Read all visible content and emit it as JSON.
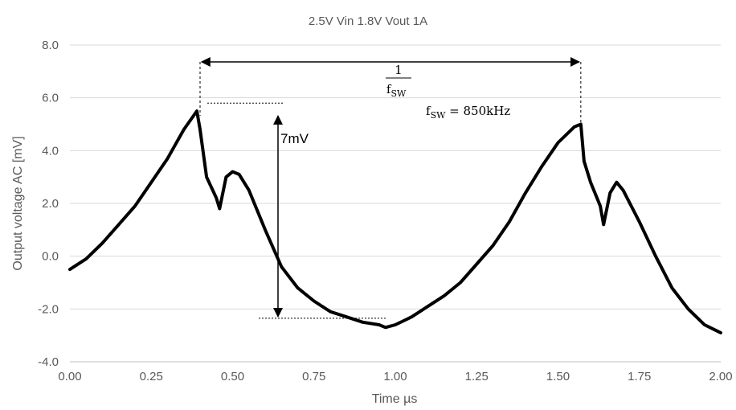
{
  "chart_data": {
    "type": "line",
    "title": "2.5V Vin 1.8V Vout 1A",
    "xlabel": "Time µs",
    "ylabel": "Output voltage AC [mV]",
    "xlim": [
      0,
      2
    ],
    "ylim": [
      -4,
      8
    ],
    "x_ticks": [
      "0.00",
      "0.25",
      "0.50",
      "0.75",
      "1.00",
      "1.25",
      "1.50",
      "1.75",
      "2.00"
    ],
    "y_ticks": [
      "8.0",
      "6.0",
      "4.0",
      "2.0",
      "0.0",
      "-2.0",
      "-4.0"
    ],
    "grid": "horizontal",
    "legend": "none",
    "series": [
      {
        "color": "#000000",
        "x": [
          0.0,
          0.05,
          0.1,
          0.15,
          0.2,
          0.25,
          0.3,
          0.35,
          0.39,
          0.4,
          0.42,
          0.45,
          0.46,
          0.48,
          0.5,
          0.52,
          0.55,
          0.6,
          0.65,
          0.7,
          0.75,
          0.8,
          0.85,
          0.9,
          0.95,
          0.97,
          1.0,
          1.05,
          1.1,
          1.15,
          1.2,
          1.25,
          1.3,
          1.35,
          1.4,
          1.45,
          1.5,
          1.55,
          1.57,
          1.58,
          1.6,
          1.63,
          1.64,
          1.66,
          1.68,
          1.7,
          1.75,
          1.8,
          1.85,
          1.9,
          1.95,
          2.0
        ],
        "y": [
          -0.5,
          -0.1,
          0.5,
          1.2,
          1.9,
          2.8,
          3.7,
          4.8,
          5.5,
          4.8,
          3.0,
          2.2,
          1.8,
          3.0,
          3.2,
          3.1,
          2.5,
          1.0,
          -0.4,
          -1.2,
          -1.7,
          -2.1,
          -2.3,
          -2.5,
          -2.6,
          -2.7,
          -2.6,
          -2.3,
          -1.9,
          -1.5,
          -1.0,
          -0.3,
          0.4,
          1.3,
          2.4,
          3.4,
          4.3,
          4.9,
          5.0,
          3.6,
          2.8,
          1.9,
          1.2,
          2.4,
          2.8,
          2.5,
          1.3,
          0.0,
          -1.2,
          -2.0,
          -2.6,
          -2.9
        ]
      }
    ],
    "annotations": {
      "period_numerator": "1",
      "period_denominator": "f",
      "period_denominator_sub": "SW",
      "freq_label": "f",
      "freq_label_sub": "SW",
      "freq_value": " = 850kHz",
      "ripple_label": "7mV",
      "period_start_x": 0.4,
      "period_end_x": 1.57,
      "ripple_top_y": 5.8,
      "ripple_bottom_y": -2.35,
      "ripple_arrow_x": 0.6
    }
  }
}
